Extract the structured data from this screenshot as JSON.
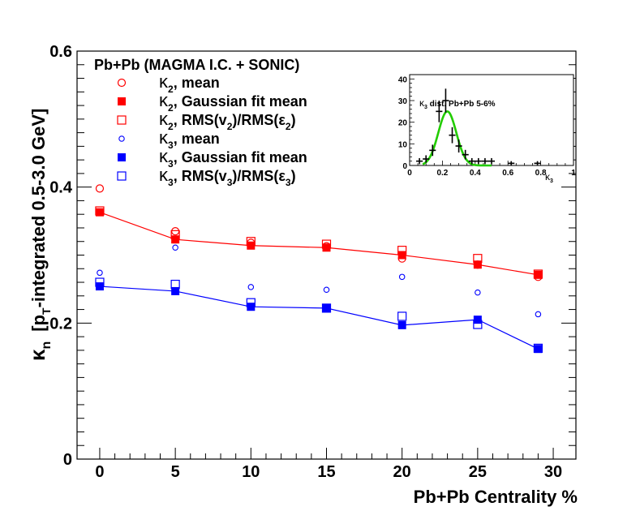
{
  "chart_data": [
    {
      "type": "scatter",
      "title": "Pb+Pb (MAGMA I.C. + SONIC)",
      "xlabel": "Pb+Pb Centrality %",
      "ylabel_main": "κ",
      "ylabel_sub": "n",
      "ylabel_rest_a": "[p",
      "ylabel_rest_sub": "T",
      "ylabel_rest_b": "-integrated 0.5-3.0 GeV]",
      "xlim": [
        -1.5,
        31.5
      ],
      "ylim": [
        0,
        0.6
      ],
      "x_ticks": [
        "0",
        "5",
        "10",
        "15",
        "20",
        "25",
        "30"
      ],
      "y_ticks": [
        "0",
        "0.2",
        "0.4",
        "0.6"
      ],
      "x": [
        0,
        5,
        10,
        15,
        20,
        25,
        29
      ],
      "series": [
        {
          "name": "κ2, mean",
          "sym": "κ",
          "sub": "2",
          "rest": ", mean",
          "marker": "open-circle-large",
          "color": "#ff0000",
          "values": [
            0.398,
            0.335,
            0.318,
            0.313,
            0.295,
            0.286,
            0.268
          ]
        },
        {
          "name": "κ2, Gaussian fit mean",
          "sym": "κ",
          "sub": "2",
          "rest": ", Gaussian fit mean",
          "marker": "filled-square",
          "color": "#ff0000",
          "values": [
            0.363,
            0.323,
            0.314,
            0.311,
            0.3,
            0.286,
            0.271
          ],
          "line": true
        },
        {
          "name": "κ2, RMS(v2)/RMS(ε2)",
          "sym": "κ",
          "sub": "2",
          "rest": ", RMS(v",
          "rest_sub": "2",
          "rest2": ")/RMS(ε",
          "rest2_sub": "2",
          "rest3": ")",
          "marker": "open-square",
          "color": "#ff0000",
          "values": [
            0.365,
            0.33,
            0.32,
            0.316,
            0.307,
            0.295,
            0.272
          ]
        },
        {
          "name": "κ3, mean",
          "sym": "κ",
          "sub": "3",
          "rest": ", mean",
          "marker": "open-circle-small",
          "color": "#0000ff",
          "values": [
            0.274,
            0.311,
            0.253,
            0.249,
            0.268,
            0.245,
            0.213
          ]
        },
        {
          "name": "κ3, Gaussian fit mean",
          "sym": "κ",
          "sub": "3",
          "rest": ", Gaussian fit mean",
          "marker": "filled-square",
          "color": "#0000ff",
          "values": [
            0.254,
            0.247,
            0.224,
            0.222,
            0.197,
            0.205,
            0.162
          ],
          "line": true
        },
        {
          "name": "κ3, RMS(v3)/RMS(ε3)",
          "sym": "κ",
          "sub": "3",
          "rest": ", RMS(v",
          "rest_sub": "3",
          "rest2": ")/RMS(ε",
          "rest2_sub": "3",
          "rest3": ")",
          "marker": "open-square",
          "color": "#0000ff",
          "values": [
            0.26,
            0.257,
            0.23,
            0.222,
            0.21,
            0.198,
            0.163
          ]
        }
      ]
    },
    {
      "type": "histogram",
      "title": "κ3 dist. Pb+Pb 5-6%",
      "title_sym": "κ",
      "title_sub": "3",
      "title_rest": " dist. Pb+Pb 5-6%",
      "xlabel_sym": "κ",
      "xlabel_sub": "3",
      "xlim": [
        0,
        1
      ],
      "ylim": [
        0,
        42
      ],
      "x_ticks": [
        "0",
        "0.2",
        "0.4",
        "0.6",
        "0.8",
        "1"
      ],
      "y_ticks": [
        "0",
        "10",
        "20",
        "30",
        "40"
      ],
      "bins": [
        {
          "x": 0.06,
          "y": 2,
          "err": 1.4
        },
        {
          "x": 0.1,
          "y": 3,
          "err": 1.7
        },
        {
          "x": 0.14,
          "y": 7,
          "err": 2.6
        },
        {
          "x": 0.18,
          "y": 25,
          "err": 5
        },
        {
          "x": 0.22,
          "y": 30,
          "err": 5.5
        },
        {
          "x": 0.26,
          "y": 14,
          "err": 3.7
        },
        {
          "x": 0.3,
          "y": 9,
          "err": 3
        },
        {
          "x": 0.34,
          "y": 5,
          "err": 2.2
        },
        {
          "x": 0.38,
          "y": 2,
          "err": 1.4
        },
        {
          "x": 0.42,
          "y": 2,
          "err": 1.4
        },
        {
          "x": 0.46,
          "y": 2,
          "err": 1.4
        },
        {
          "x": 0.5,
          "y": 2,
          "err": 1.4
        },
        {
          "x": 0.62,
          "y": 1,
          "err": 1
        },
        {
          "x": 0.78,
          "y": 1,
          "err": 1
        }
      ],
      "fit": {
        "type": "gaussian",
        "mean": 0.23,
        "sigma": 0.055,
        "amplitude": 25,
        "color": "#22cc00",
        "range": [
          0.08,
          0.5
        ]
      }
    }
  ]
}
